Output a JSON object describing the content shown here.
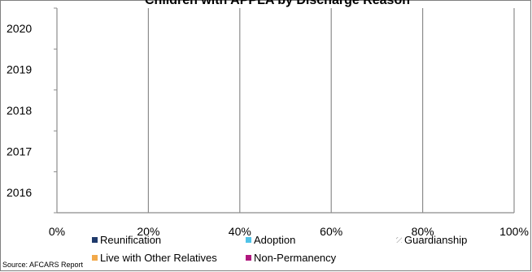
{
  "chart_data": {
    "type": "bar",
    "orientation": "horizontal",
    "stacked": true,
    "title": "Children with APPLA by Discharge Reason",
    "categories": [
      "2016",
      "2017",
      "2018",
      "2019",
      "2020"
    ],
    "xlim": [
      0,
      1
    ],
    "x_ticks": [
      "0%",
      "20%",
      "40%",
      "60%",
      "80%",
      "100%"
    ],
    "grid": true,
    "legend_position": "bottom",
    "series": [
      {
        "name": "Reunification",
        "color": "#1F3A6B",
        "values": [
          null,
          null,
          null,
          null,
          null
        ]
      },
      {
        "name": "Adoption",
        "color": "#4FC3E8",
        "values": [
          null,
          null,
          null,
          null,
          null
        ]
      },
      {
        "name": "Guardianship",
        "color": "#BFBFBF",
        "pattern": "hatch",
        "values": [
          null,
          null,
          null,
          null,
          null
        ]
      },
      {
        "name": "Live with Other Relatives",
        "color": "#F2A94A",
        "values": [
          null,
          null,
          null,
          null,
          null
        ]
      },
      {
        "name": "Non-Permanency",
        "color": "#B0177E",
        "values": [
          null,
          null,
          null,
          null,
          null
        ]
      }
    ],
    "source": "Source: AFCARS Report"
  }
}
